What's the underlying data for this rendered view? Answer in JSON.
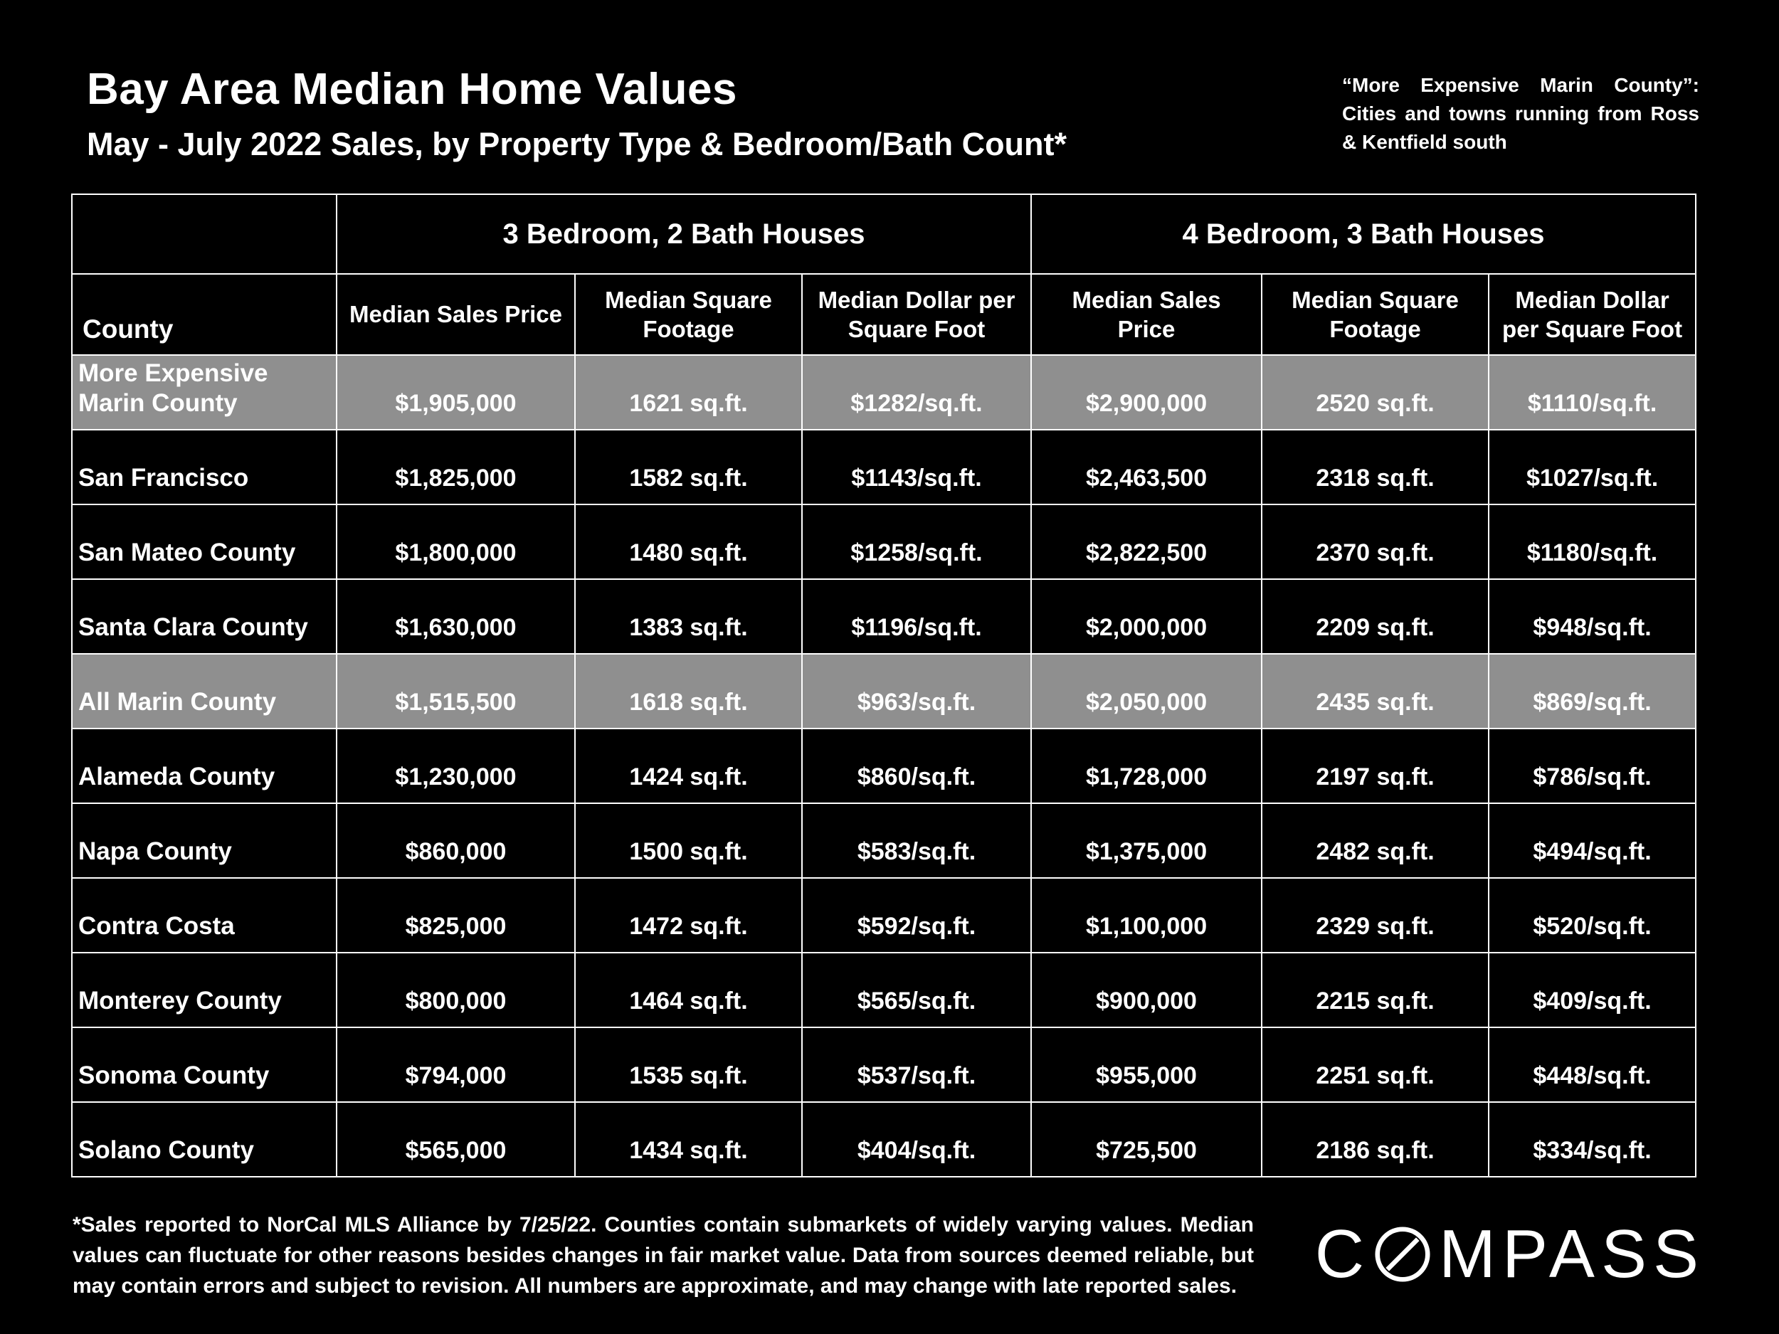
{
  "header": {
    "title": "Bay Area Median Home Values",
    "subtitle": "May - July 2022 Sales, by Property Type & Bedroom/Bath Count*",
    "note": "“More Expensive Marin County”: Cities and towns running from Ross & Kentfield south"
  },
  "table": {
    "county_header": "County",
    "group_headers": [
      "3 Bedroom, 2 Bath Houses",
      "4 Bedroom, 3 Bath Houses"
    ],
    "sub_headers": [
      "Median Sales Price",
      "Median Square Footage",
      "Median Dollar per Square Foot",
      "Median Sales Price",
      "Median Square Footage",
      "Median Dollar per Square Foot"
    ],
    "rows": [
      {
        "county": "More Expensive Marin County",
        "highlighted": true,
        "values": [
          "$1,905,000",
          "1621 sq.ft.",
          "$1282/sq.ft.",
          "$2,900,000",
          "2520 sq.ft.",
          "$1110/sq.ft."
        ]
      },
      {
        "county": "San Francisco",
        "highlighted": false,
        "values": [
          "$1,825,000",
          "1582 sq.ft.",
          "$1143/sq.ft.",
          "$2,463,500",
          "2318 sq.ft.",
          "$1027/sq.ft."
        ]
      },
      {
        "county": "San Mateo County",
        "highlighted": false,
        "values": [
          "$1,800,000",
          "1480 sq.ft.",
          "$1258/sq.ft.",
          "$2,822,500",
          "2370 sq.ft.",
          "$1180/sq.ft."
        ]
      },
      {
        "county": "Santa Clara County",
        "highlighted": false,
        "values": [
          "$1,630,000",
          "1383 sq.ft.",
          "$1196/sq.ft.",
          "$2,000,000",
          "2209 sq.ft.",
          "$948/sq.ft."
        ]
      },
      {
        "county": "All Marin County",
        "highlighted": true,
        "values": [
          "$1,515,500",
          "1618 sq.ft.",
          "$963/sq.ft.",
          "$2,050,000",
          "2435 sq.ft.",
          "$869/sq.ft."
        ]
      },
      {
        "county": "Alameda County",
        "highlighted": false,
        "values": [
          "$1,230,000",
          "1424 sq.ft.",
          "$860/sq.ft.",
          "$1,728,000",
          "2197 sq.ft.",
          "$786/sq.ft."
        ]
      },
      {
        "county": "Napa County",
        "highlighted": false,
        "values": [
          "$860,000",
          "1500 sq.ft.",
          "$583/sq.ft.",
          "$1,375,000",
          "2482 sq.ft.",
          "$494/sq.ft."
        ]
      },
      {
        "county": "Contra Costa",
        "highlighted": false,
        "values": [
          "$825,000",
          "1472 sq.ft.",
          "$592/sq.ft.",
          "$1,100,000",
          "2329 sq.ft.",
          "$520/sq.ft."
        ]
      },
      {
        "county": "Monterey County",
        "highlighted": false,
        "values": [
          "$800,000",
          "1464 sq.ft.",
          "$565/sq.ft.",
          "$900,000",
          "2215 sq.ft.",
          "$409/sq.ft."
        ]
      },
      {
        "county": "Sonoma County",
        "highlighted": false,
        "values": [
          "$794,000",
          "1535 sq.ft.",
          "$537/sq.ft.",
          "$955,000",
          "2251 sq.ft.",
          "$448/sq.ft."
        ]
      },
      {
        "county": "Solano County",
        "highlighted": false,
        "values": [
          "$565,000",
          "1434 sq.ft.",
          "$404/sq.ft.",
          "$725,500",
          "2186 sq.ft.",
          "$334/sq.ft."
        ]
      }
    ]
  },
  "footnote": "*Sales reported to NorCal MLS Alliance by 7/25/22. Counties contain submarkets of widely varying values. Median values can fluctuate for other reasons besides changes in fair market value. Data from sources deemed reliable, but may contain errors and subject to revision. All numbers are approximate, and may change with late reported sales.",
  "logo": {
    "full": "COMPASS",
    "before_o": "C",
    "after_o": "MPASS"
  },
  "colors": {
    "background": "#000000",
    "text": "#ffffff",
    "highlight_row": "#8f8f8f",
    "table_border": "#ffffff"
  },
  "chart_data": {
    "type": "table",
    "title": "Bay Area Median Home Values",
    "subtitle": "May - July 2022 Sales, by Property Type & Bedroom/Bath Count",
    "column_groups": [
      "3 Bedroom, 2 Bath Houses",
      "4 Bedroom, 3 Bath Houses"
    ],
    "columns": [
      "County",
      "3BR/2BA Median Sales Price ($)",
      "3BR/2BA Median Square Footage (sq.ft.)",
      "3BR/2BA Median Dollar per Square Foot ($/sq.ft.)",
      "4BR/3BA Median Sales Price ($)",
      "4BR/3BA Median Square Footage (sq.ft.)",
      "4BR/3BA Median Dollar per Square Foot ($/sq.ft.)"
    ],
    "rows": [
      [
        "More Expensive Marin County",
        1905000,
        1621,
        1282,
        2900000,
        2520,
        1110
      ],
      [
        "San Francisco",
        1825000,
        1582,
        1143,
        2463500,
        2318,
        1027
      ],
      [
        "San Mateo County",
        1800000,
        1480,
        1258,
        2822500,
        2370,
        1180
      ],
      [
        "Santa Clara County",
        1630000,
        1383,
        1196,
        2000000,
        2209,
        948
      ],
      [
        "All Marin County",
        1515500,
        1618,
        963,
        2050000,
        2435,
        869
      ],
      [
        "Alameda County",
        1230000,
        1424,
        860,
        1728000,
        2197,
        786
      ],
      [
        "Napa County",
        860000,
        1500,
        583,
        1375000,
        2482,
        494
      ],
      [
        "Contra Costa",
        825000,
        1472,
        592,
        1100000,
        2329,
        520
      ],
      [
        "Monterey County",
        800000,
        1464,
        565,
        900000,
        2215,
        409
      ],
      [
        "Sonoma County",
        794000,
        1535,
        537,
        955000,
        2251,
        448
      ],
      [
        "Solano County",
        565000,
        1434,
        404,
        725500,
        2186,
        334
      ]
    ],
    "highlighted_rows": [
      "More Expensive Marin County",
      "All Marin County"
    ],
    "footnote": "*Sales reported to NorCal MLS Alliance by 7/25/22."
  }
}
